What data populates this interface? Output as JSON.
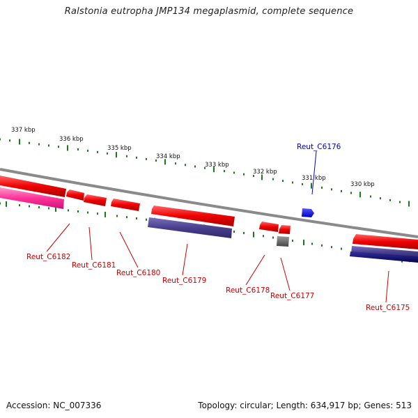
{
  "title": "Ralstonia eutropha JMP134 megaplasmid, complete sequence",
  "footer": {
    "accession": "Accession: NC_007336",
    "summary": "Topology: circular; Length: 634,917 bp; Genes: 513"
  },
  "scale_labels": [
    "337 kbp",
    "336 kbp",
    "335 kbp",
    "334 kbp",
    "333 kbp",
    "332 kbp",
    "331 kbp",
    "330 kbp"
  ],
  "genes": [
    {
      "name": "Reut_C6182",
      "color": "#cc0000"
    },
    {
      "name": "Reut_C6181",
      "color": "#cc0000"
    },
    {
      "name": "Reut_C6180",
      "color": "#cc0000"
    },
    {
      "name": "Reut_C6179",
      "color": "#cc0000"
    },
    {
      "name": "Reut_C6178",
      "color": "#cc0000"
    },
    {
      "name": "Reut_C6177",
      "color": "#cc0000"
    },
    {
      "name": "Reut_C6176",
      "color": "#0000cc"
    },
    {
      "name": "Reut_C6175",
      "color": "#cc0000"
    }
  ],
  "colors": {
    "backbone": "#8a8a8a",
    "tick": "#1a7a1a",
    "forward_gene": "#ee0000",
    "reverse_gene": "#0000ee",
    "pink_track": "#ff3399",
    "purple_track": "#4a3f8c",
    "navy_track": "#0a0a6e",
    "gray_track": "#555555"
  }
}
